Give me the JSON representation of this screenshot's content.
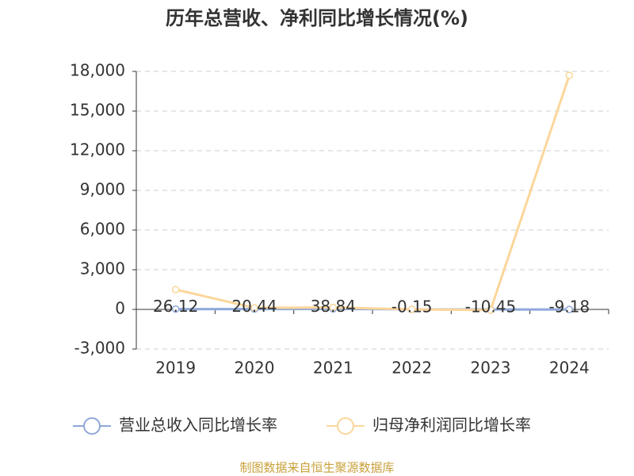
{
  "chart_data": {
    "type": "line",
    "title": "历年总营收、净利同比增长情况(%)",
    "categories": [
      "2019",
      "2020",
      "2021",
      "2022",
      "2023",
      "2024"
    ],
    "series": [
      {
        "name": "营业总收入同比增长率",
        "color": "#8fa8d8",
        "values": [
          26.12,
          20.44,
          38.84,
          -0.15,
          -10.45,
          -9.18
        ],
        "show_labels": true
      },
      {
        "name": "归母净利润同比增长率",
        "color": "#fbd69a",
        "values": [
          1500,
          120,
          150,
          0,
          -50,
          17700
        ],
        "show_labels": false
      }
    ],
    "ylim": [
      -3000,
      18000
    ],
    "yticks": [
      {
        "value": -3000,
        "label": "-3,000"
      },
      0,
      {
        "value": 3000,
        "label": "3,000"
      },
      {
        "value": 6000,
        "label": "6,000"
      },
      {
        "value": 9000,
        "label": "9,000"
      },
      {
        "value": 12000,
        "label": "12,000"
      },
      {
        "value": 15000,
        "label": "15,000"
      },
      {
        "value": 18000,
        "label": "18,000"
      }
    ],
    "grid": true,
    "legend": "bottom",
    "source": "制图数据来自恒生聚源数据库"
  }
}
